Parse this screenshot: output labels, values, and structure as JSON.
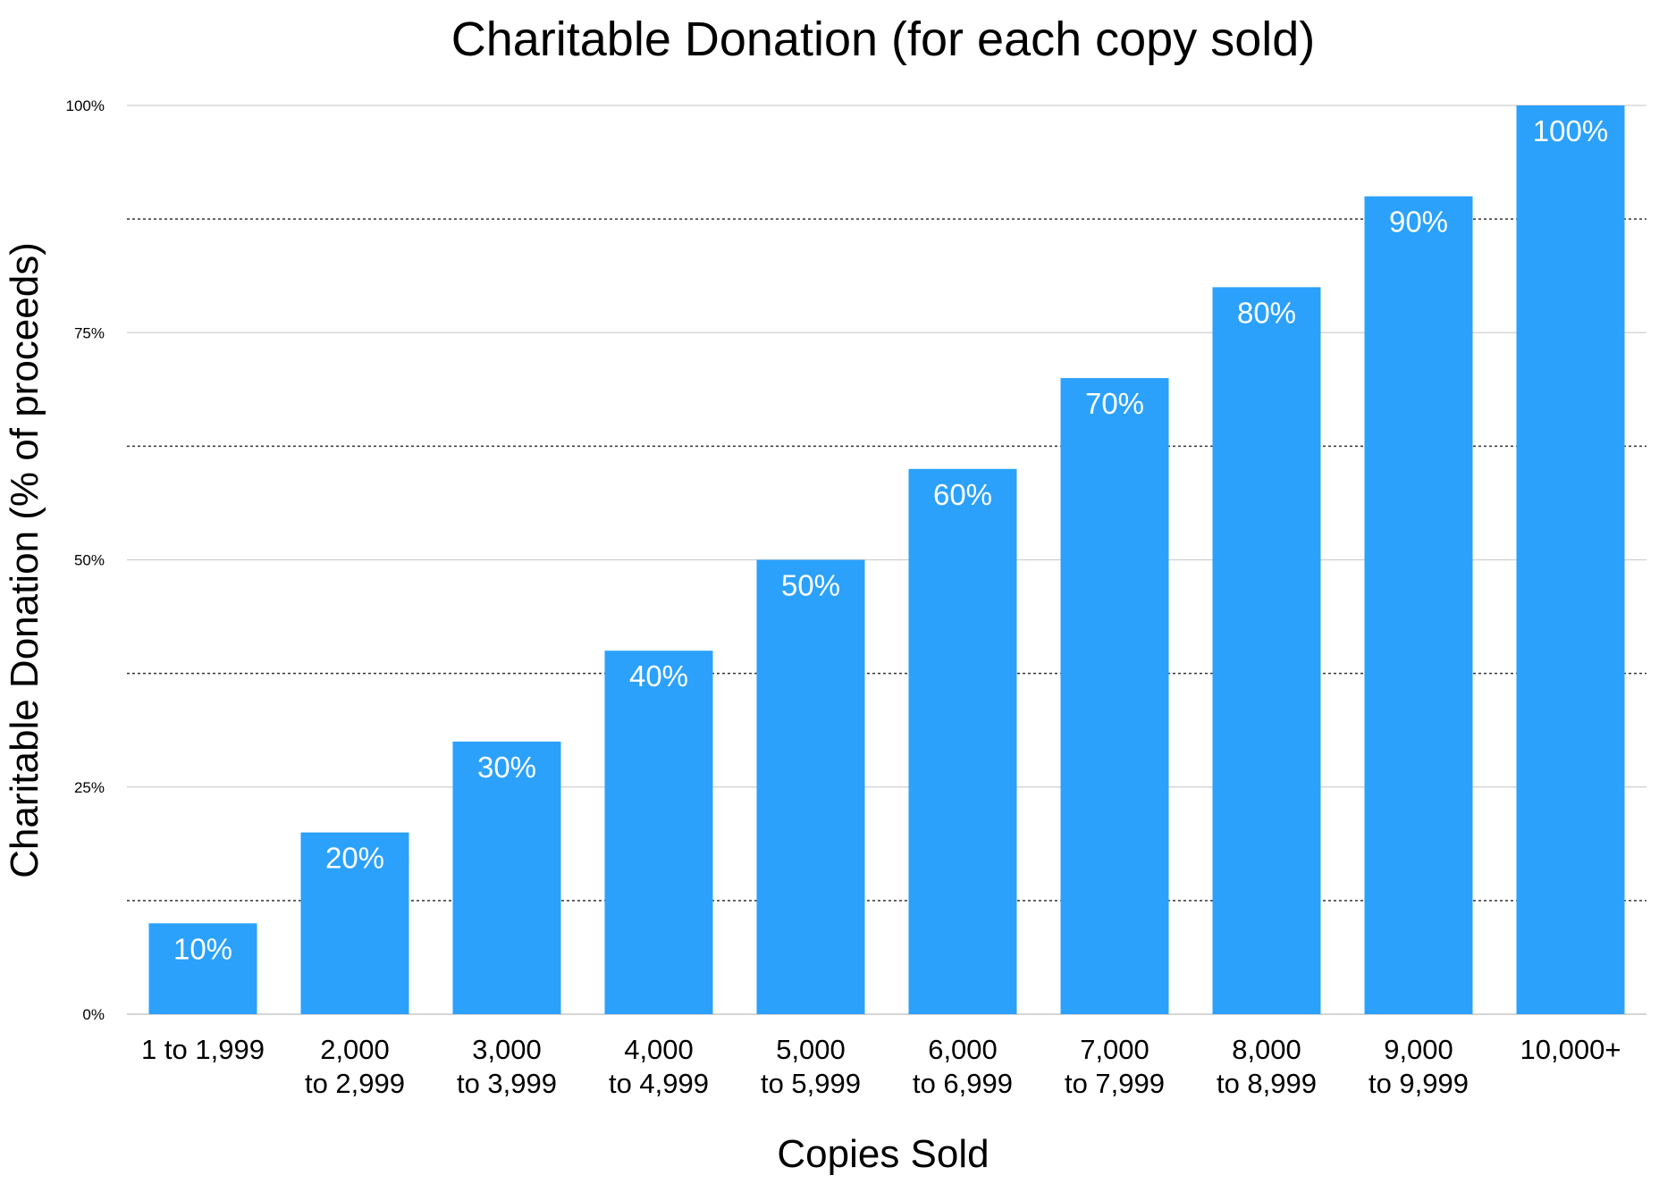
{
  "chart_data": {
    "type": "bar",
    "title": "Charitable Donation (for each copy sold)",
    "xlabel": "Copies Sold",
    "ylabel": "Charitable Donation (% of proceeds)",
    "ylim": [
      0,
      100
    ],
    "yticks": [
      {
        "value": 0,
        "label": "0%"
      },
      {
        "value": 25,
        "label": "25%"
      },
      {
        "value": 50,
        "label": "50%"
      },
      {
        "value": 75,
        "label": "75%"
      },
      {
        "value": 100,
        "label": "100%"
      }
    ],
    "minor_gridlines": [
      12.5,
      37.5,
      62.5,
      87.5
    ],
    "grid": true,
    "legend": "none",
    "bar_color": "#2ba1fc",
    "categories": [
      [
        "1 to 1,999"
      ],
      [
        "2,000",
        "to 2,999"
      ],
      [
        "3,000",
        "to 3,999"
      ],
      [
        "4,000",
        "to 4,999"
      ],
      [
        "5,000",
        "to 5,999"
      ],
      [
        "6,000",
        "to 6,999"
      ],
      [
        "7,000",
        "to 7,999"
      ],
      [
        "8,000",
        "to 8,999"
      ],
      [
        "9,000",
        "to 9,999"
      ],
      [
        "10,000+"
      ]
    ],
    "values": [
      10,
      20,
      30,
      40,
      50,
      60,
      70,
      80,
      90,
      100
    ],
    "data_labels": [
      "10%",
      "20%",
      "30%",
      "40%",
      "50%",
      "60%",
      "70%",
      "80%",
      "90%",
      "100%"
    ]
  }
}
